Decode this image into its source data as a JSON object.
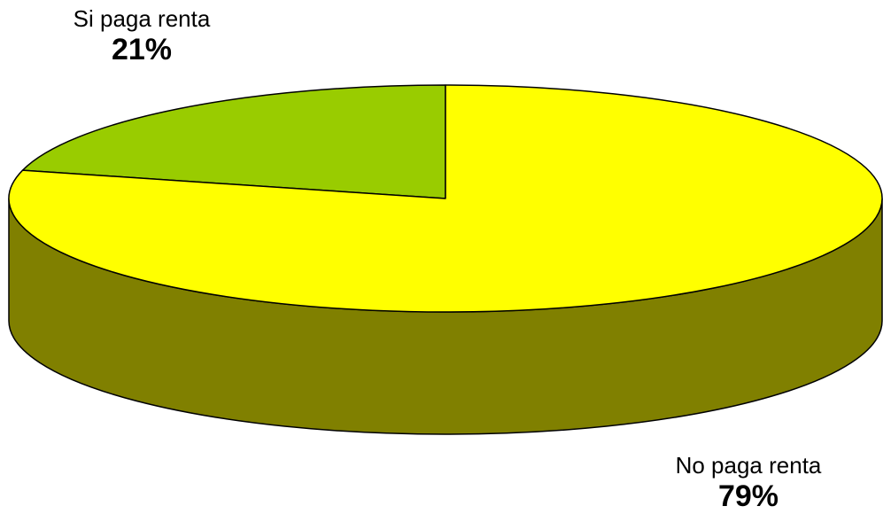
{
  "chart_data": {
    "type": "pie",
    "style": "3d",
    "title": "",
    "slices": [
      {
        "label": "Si paga renta",
        "value": 21,
        "value_label": "21%",
        "color": "#99CC00",
        "side_color": "#4C6600"
      },
      {
        "label": "No paga renta",
        "value": 79,
        "value_label": "79%",
        "color": "#FFFF00",
        "side_color": "#808000"
      }
    ],
    "legend": "none",
    "outline_color": "#000000"
  }
}
